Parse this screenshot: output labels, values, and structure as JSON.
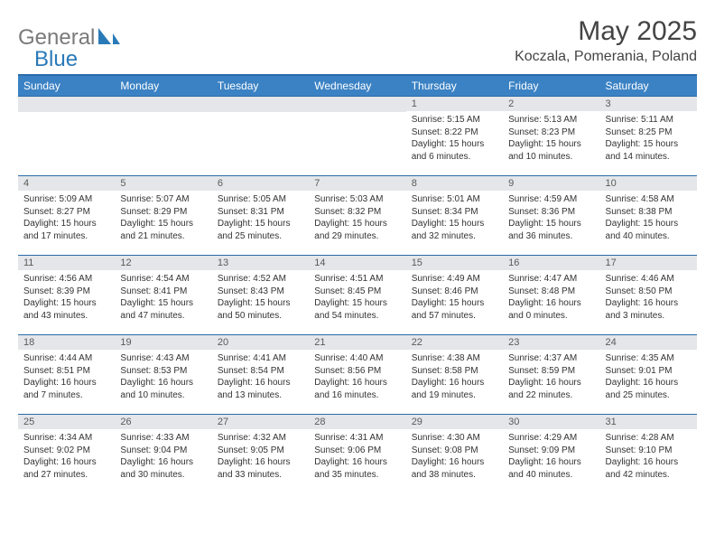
{
  "logo": {
    "text1": "General",
    "text2": "Blue"
  },
  "title": "May 2025",
  "location": "Koczala, Pomerania, Poland",
  "colors": {
    "header_bg": "#3b82c4",
    "header_text": "#ffffff",
    "border": "#2a6aa8",
    "daybar_bg": "#e4e6e9",
    "daybar_text": "#5a5a5a",
    "body_text": "#333333",
    "logo_gray": "#7a7a7a",
    "logo_blue": "#2a7ab8"
  },
  "weekdays": [
    "Sunday",
    "Monday",
    "Tuesday",
    "Wednesday",
    "Thursday",
    "Friday",
    "Saturday"
  ],
  "weeks": [
    [
      null,
      null,
      null,
      null,
      {
        "num": "1",
        "sunrise": "5:15 AM",
        "sunset": "8:22 PM",
        "daylight": "15 hours and 6 minutes."
      },
      {
        "num": "2",
        "sunrise": "5:13 AM",
        "sunset": "8:23 PM",
        "daylight": "15 hours and 10 minutes."
      },
      {
        "num": "3",
        "sunrise": "5:11 AM",
        "sunset": "8:25 PM",
        "daylight": "15 hours and 14 minutes."
      }
    ],
    [
      {
        "num": "4",
        "sunrise": "5:09 AM",
        "sunset": "8:27 PM",
        "daylight": "15 hours and 17 minutes."
      },
      {
        "num": "5",
        "sunrise": "5:07 AM",
        "sunset": "8:29 PM",
        "daylight": "15 hours and 21 minutes."
      },
      {
        "num": "6",
        "sunrise": "5:05 AM",
        "sunset": "8:31 PM",
        "daylight": "15 hours and 25 minutes."
      },
      {
        "num": "7",
        "sunrise": "5:03 AM",
        "sunset": "8:32 PM",
        "daylight": "15 hours and 29 minutes."
      },
      {
        "num": "8",
        "sunrise": "5:01 AM",
        "sunset": "8:34 PM",
        "daylight": "15 hours and 32 minutes."
      },
      {
        "num": "9",
        "sunrise": "4:59 AM",
        "sunset": "8:36 PM",
        "daylight": "15 hours and 36 minutes."
      },
      {
        "num": "10",
        "sunrise": "4:58 AM",
        "sunset": "8:38 PM",
        "daylight": "15 hours and 40 minutes."
      }
    ],
    [
      {
        "num": "11",
        "sunrise": "4:56 AM",
        "sunset": "8:39 PM",
        "daylight": "15 hours and 43 minutes."
      },
      {
        "num": "12",
        "sunrise": "4:54 AM",
        "sunset": "8:41 PM",
        "daylight": "15 hours and 47 minutes."
      },
      {
        "num": "13",
        "sunrise": "4:52 AM",
        "sunset": "8:43 PM",
        "daylight": "15 hours and 50 minutes."
      },
      {
        "num": "14",
        "sunrise": "4:51 AM",
        "sunset": "8:45 PM",
        "daylight": "15 hours and 54 minutes."
      },
      {
        "num": "15",
        "sunrise": "4:49 AM",
        "sunset": "8:46 PM",
        "daylight": "15 hours and 57 minutes."
      },
      {
        "num": "16",
        "sunrise": "4:47 AM",
        "sunset": "8:48 PM",
        "daylight": "16 hours and 0 minutes."
      },
      {
        "num": "17",
        "sunrise": "4:46 AM",
        "sunset": "8:50 PM",
        "daylight": "16 hours and 3 minutes."
      }
    ],
    [
      {
        "num": "18",
        "sunrise": "4:44 AM",
        "sunset": "8:51 PM",
        "daylight": "16 hours and 7 minutes."
      },
      {
        "num": "19",
        "sunrise": "4:43 AM",
        "sunset": "8:53 PM",
        "daylight": "16 hours and 10 minutes."
      },
      {
        "num": "20",
        "sunrise": "4:41 AM",
        "sunset": "8:54 PM",
        "daylight": "16 hours and 13 minutes."
      },
      {
        "num": "21",
        "sunrise": "4:40 AM",
        "sunset": "8:56 PM",
        "daylight": "16 hours and 16 minutes."
      },
      {
        "num": "22",
        "sunrise": "4:38 AM",
        "sunset": "8:58 PM",
        "daylight": "16 hours and 19 minutes."
      },
      {
        "num": "23",
        "sunrise": "4:37 AM",
        "sunset": "8:59 PM",
        "daylight": "16 hours and 22 minutes."
      },
      {
        "num": "24",
        "sunrise": "4:35 AM",
        "sunset": "9:01 PM",
        "daylight": "16 hours and 25 minutes."
      }
    ],
    [
      {
        "num": "25",
        "sunrise": "4:34 AM",
        "sunset": "9:02 PM",
        "daylight": "16 hours and 27 minutes."
      },
      {
        "num": "26",
        "sunrise": "4:33 AM",
        "sunset": "9:04 PM",
        "daylight": "16 hours and 30 minutes."
      },
      {
        "num": "27",
        "sunrise": "4:32 AM",
        "sunset": "9:05 PM",
        "daylight": "16 hours and 33 minutes."
      },
      {
        "num": "28",
        "sunrise": "4:31 AM",
        "sunset": "9:06 PM",
        "daylight": "16 hours and 35 minutes."
      },
      {
        "num": "29",
        "sunrise": "4:30 AM",
        "sunset": "9:08 PM",
        "daylight": "16 hours and 38 minutes."
      },
      {
        "num": "30",
        "sunrise": "4:29 AM",
        "sunset": "9:09 PM",
        "daylight": "16 hours and 40 minutes."
      },
      {
        "num": "31",
        "sunrise": "4:28 AM",
        "sunset": "9:10 PM",
        "daylight": "16 hours and 42 minutes."
      }
    ]
  ],
  "labels": {
    "sunrise": "Sunrise: ",
    "sunset": "Sunset: ",
    "daylight": "Daylight: "
  }
}
